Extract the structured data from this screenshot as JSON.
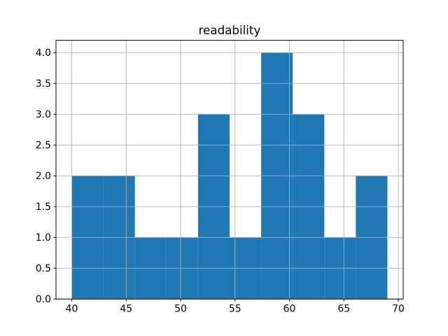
{
  "figure": {
    "background": "#ffffff"
  },
  "chart_data": {
    "type": "bar",
    "subtype": "histogram",
    "title": "readability",
    "xlabel": "",
    "ylabel": "",
    "bin_edges": [
      40.0,
      42.9,
      45.8,
      48.7,
      51.6,
      54.5,
      57.4,
      60.3,
      63.2,
      66.1,
      69.0
    ],
    "counts": [
      2,
      2,
      1,
      1,
      3,
      1,
      4,
      3,
      1,
      2
    ],
    "xticks": {
      "values": [
        40,
        45,
        50,
        55,
        60,
        65,
        70
      ],
      "labels": [
        "40",
        "45",
        "50",
        "55",
        "60",
        "65",
        "70"
      ]
    },
    "yticks": {
      "values": [
        0.0,
        0.5,
        1.0,
        1.5,
        2.0,
        2.5,
        3.0,
        3.5,
        4.0
      ],
      "labels": [
        "0.0",
        "0.5",
        "1.0",
        "1.5",
        "2.0",
        "2.5",
        "3.0",
        "3.5",
        "4.0"
      ]
    },
    "xlim": [
      38.55,
      70.45
    ],
    "ylim": [
      0,
      4.2
    ],
    "grid": true,
    "grid_over_bars": true,
    "legend": null,
    "bar_color": "#1f77b4",
    "grid_color": "#b0b0b0",
    "axis_color": "#000000",
    "text_color": "#000000"
  }
}
